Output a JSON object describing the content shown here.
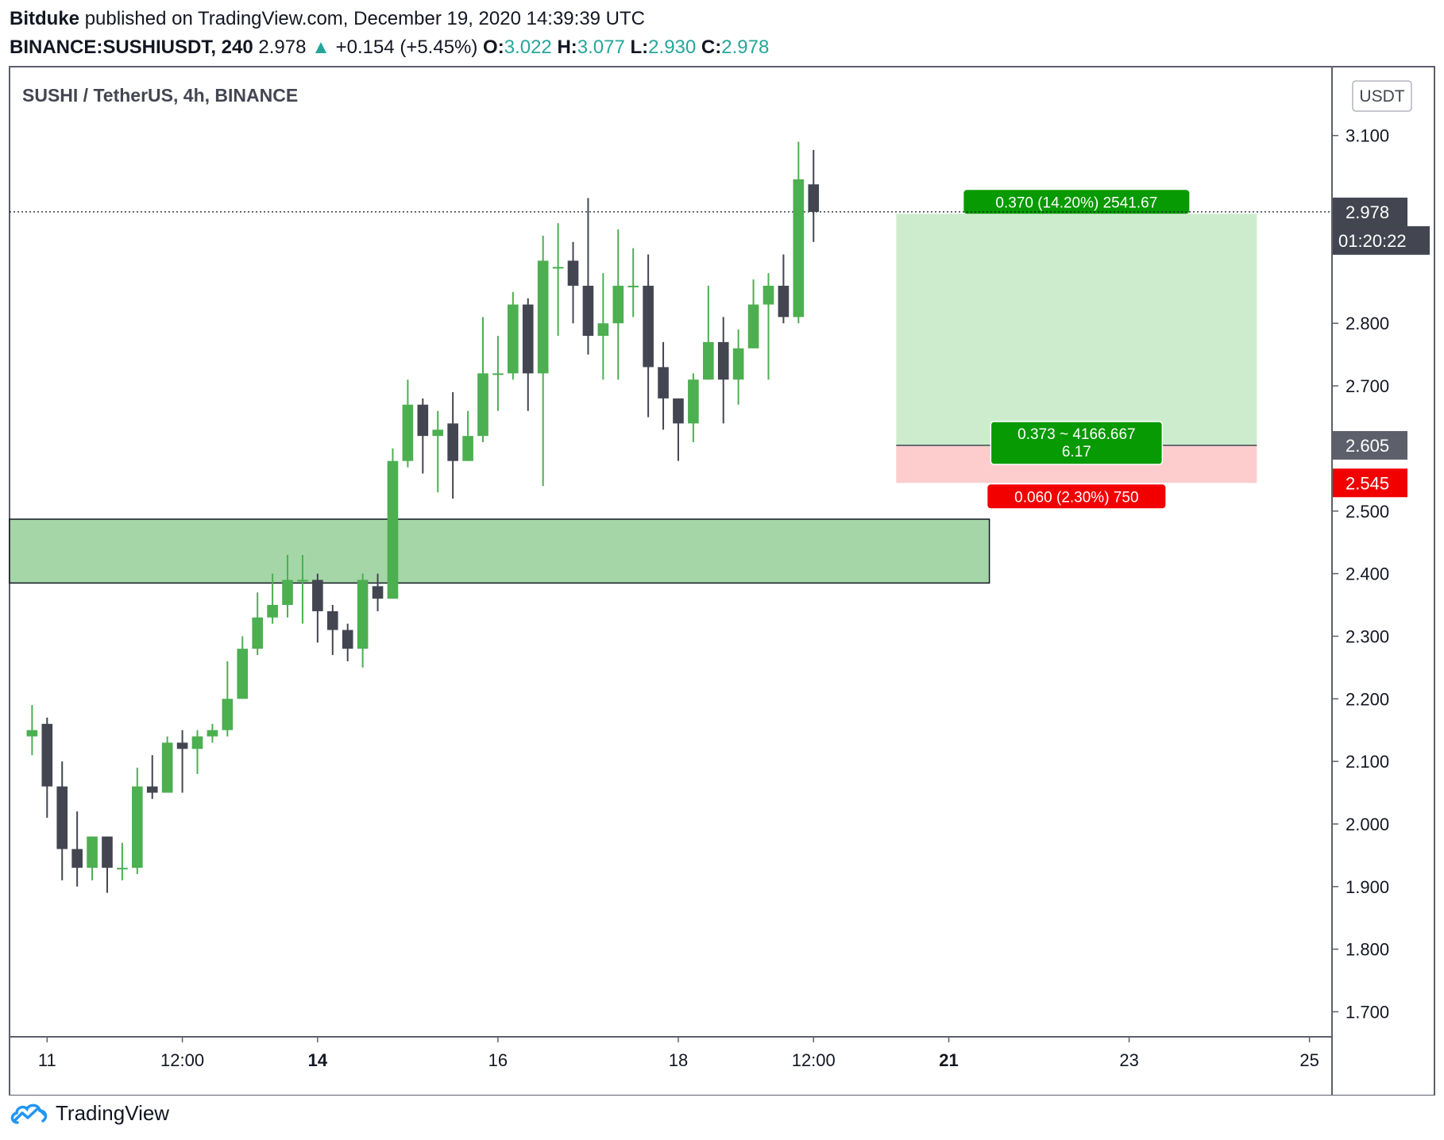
{
  "header": {
    "author": "Bitduke",
    "published_text": "published on TradingView.com, December 19, 2020 14:39:39 UTC",
    "symbol_interval": "BINANCE:SUSHIUSDT, 240",
    "last": "2.978",
    "change": "+0.154 (+5.45%)",
    "o_label": "O:",
    "o_value": "3.022",
    "h_label": "H:",
    "h_value": "3.077",
    "l_label": "L:",
    "l_value": "2.930",
    "c_label": "C:",
    "c_value": "2.978"
  },
  "footer": {
    "brand": "TradingView",
    "logo_icon": "tradingview-cloud-icon"
  },
  "chart_data": {
    "type": "candlestick",
    "title": "SUSHI / TetherUS, 4h, BINANCE",
    "currency": "USDT",
    "ylim": [
      1.66,
      3.21
    ],
    "yticks": [
      1.7,
      1.8,
      1.9,
      2.0,
      2.1,
      2.2,
      2.3,
      2.4,
      2.5,
      2.7,
      2.8,
      3.1
    ],
    "ytick_labels": [
      "1.700",
      "1.800",
      "1.900",
      "2.000",
      "2.100",
      "2.200",
      "2.300",
      "2.400",
      "2.500",
      "2.700",
      "2.800",
      "3.100"
    ],
    "xlim_bar_index": [
      -1.5,
      86.5
    ],
    "xticks": [
      {
        "i": 1,
        "label": "11",
        "bold": false
      },
      {
        "i": 10,
        "label": "12:00",
        "bold": false
      },
      {
        "i": 19,
        "label": "14",
        "bold": true
      },
      {
        "i": 31,
        "label": "16",
        "bold": false
      },
      {
        "i": 43,
        "label": "18",
        "bold": false
      },
      {
        "i": 52,
        "label": "12:00",
        "bold": false
      },
      {
        "i": 61,
        "label": "21",
        "bold": true
      },
      {
        "i": 73,
        "label": "23",
        "bold": false
      },
      {
        "i": 85,
        "label": "25",
        "bold": false
      }
    ],
    "up_color": "#4caf50",
    "down_color": "#434651",
    "candles": [
      {
        "o": 2.14,
        "h": 2.19,
        "l": 2.11,
        "c": 2.15
      },
      {
        "o": 2.16,
        "h": 2.17,
        "l": 2.01,
        "c": 2.06
      },
      {
        "o": 2.06,
        "h": 2.1,
        "l": 1.91,
        "c": 1.96
      },
      {
        "o": 1.96,
        "h": 2.02,
        "l": 1.9,
        "c": 1.93
      },
      {
        "o": 1.93,
        "h": 1.98,
        "l": 1.91,
        "c": 1.98
      },
      {
        "o": 1.98,
        "h": 1.98,
        "l": 1.89,
        "c": 1.93
      },
      {
        "o": 1.93,
        "h": 1.97,
        "l": 1.91,
        "c": 1.93
      },
      {
        "o": 1.93,
        "h": 2.09,
        "l": 1.92,
        "c": 2.06
      },
      {
        "o": 2.06,
        "h": 2.11,
        "l": 2.04,
        "c": 2.05
      },
      {
        "o": 2.05,
        "h": 2.14,
        "l": 2.05,
        "c": 2.13
      },
      {
        "o": 2.13,
        "h": 2.15,
        "l": 2.05,
        "c": 2.12
      },
      {
        "o": 2.12,
        "h": 2.15,
        "l": 2.08,
        "c": 2.14
      },
      {
        "o": 2.14,
        "h": 2.16,
        "l": 2.13,
        "c": 2.15
      },
      {
        "o": 2.15,
        "h": 2.26,
        "l": 2.14,
        "c": 2.2
      },
      {
        "o": 2.2,
        "h": 2.3,
        "l": 2.2,
        "c": 2.28
      },
      {
        "o": 2.28,
        "h": 2.37,
        "l": 2.27,
        "c": 2.33
      },
      {
        "o": 2.33,
        "h": 2.4,
        "l": 2.32,
        "c": 2.35
      },
      {
        "o": 2.35,
        "h": 2.43,
        "l": 2.33,
        "c": 2.39
      },
      {
        "o": 2.39,
        "h": 2.43,
        "l": 2.32,
        "c": 2.39
      },
      {
        "o": 2.39,
        "h": 2.4,
        "l": 2.29,
        "c": 2.34
      },
      {
        "o": 2.34,
        "h": 2.35,
        "l": 2.27,
        "c": 2.31
      },
      {
        "o": 2.31,
        "h": 2.32,
        "l": 2.26,
        "c": 2.28
      },
      {
        "o": 2.28,
        "h": 2.4,
        "l": 2.25,
        "c": 2.39
      },
      {
        "o": 2.38,
        "h": 2.4,
        "l": 2.34,
        "c": 2.36
      },
      {
        "o": 2.36,
        "h": 2.6,
        "l": 2.36,
        "c": 2.58
      },
      {
        "o": 2.58,
        "h": 2.71,
        "l": 2.57,
        "c": 2.67
      },
      {
        "o": 2.67,
        "h": 2.68,
        "l": 2.56,
        "c": 2.62
      },
      {
        "o": 2.62,
        "h": 2.66,
        "l": 2.53,
        "c": 2.63
      },
      {
        "o": 2.64,
        "h": 2.69,
        "l": 2.52,
        "c": 2.58
      },
      {
        "o": 2.58,
        "h": 2.66,
        "l": 2.58,
        "c": 2.62
      },
      {
        "o": 2.62,
        "h": 2.81,
        "l": 2.61,
        "c": 2.72
      },
      {
        "o": 2.72,
        "h": 2.78,
        "l": 2.66,
        "c": 2.72
      },
      {
        "o": 2.72,
        "h": 2.85,
        "l": 2.71,
        "c": 2.83
      },
      {
        "o": 2.83,
        "h": 2.84,
        "l": 2.66,
        "c": 2.72
      },
      {
        "o": 2.72,
        "h": 2.94,
        "l": 2.54,
        "c": 2.9
      },
      {
        "o": 2.89,
        "h": 2.96,
        "l": 2.78,
        "c": 2.89
      },
      {
        "o": 2.9,
        "h": 2.93,
        "l": 2.8,
        "c": 2.86
      },
      {
        "o": 2.86,
        "h": 3.0,
        "l": 2.75,
        "c": 2.78
      },
      {
        "o": 2.78,
        "h": 2.88,
        "l": 2.71,
        "c": 2.8
      },
      {
        "o": 2.8,
        "h": 2.95,
        "l": 2.71,
        "c": 2.86
      },
      {
        "o": 2.86,
        "h": 2.92,
        "l": 2.81,
        "c": 2.86
      },
      {
        "o": 2.86,
        "h": 2.91,
        "l": 2.65,
        "c": 2.73
      },
      {
        "o": 2.73,
        "h": 2.77,
        "l": 2.63,
        "c": 2.68
      },
      {
        "o": 2.68,
        "h": 2.68,
        "l": 2.58,
        "c": 2.64
      },
      {
        "o": 2.64,
        "h": 2.72,
        "l": 2.61,
        "c": 2.71
      },
      {
        "o": 2.71,
        "h": 2.86,
        "l": 2.71,
        "c": 2.77
      },
      {
        "o": 2.77,
        "h": 2.81,
        "l": 2.64,
        "c": 2.71
      },
      {
        "o": 2.71,
        "h": 2.79,
        "l": 2.67,
        "c": 2.76
      },
      {
        "o": 2.76,
        "h": 2.87,
        "l": 2.76,
        "c": 2.83
      },
      {
        "o": 2.83,
        "h": 2.88,
        "l": 2.71,
        "c": 2.86
      },
      {
        "o": 2.86,
        "h": 2.91,
        "l": 2.8,
        "c": 2.81
      },
      {
        "o": 2.81,
        "h": 3.09,
        "l": 2.8,
        "c": 3.03
      },
      {
        "o": 3.022,
        "h": 3.077,
        "l": 2.93,
        "c": 2.978
      }
    ],
    "last_price": {
      "value": 2.978,
      "label": "2.978",
      "countdown": "01:20:22"
    },
    "demand_zone": {
      "from_bar": -1.5,
      "to_bar": 63.7,
      "low": 2.385,
      "high": 2.487
    },
    "long_position": {
      "from_bar": 57.5,
      "to_bar": 81.5,
      "entry": 2.605,
      "target": 2.975,
      "stop": 2.545,
      "entry_label": "2.605",
      "target_label": "2.975",
      "stop_label": "2.545",
      "target_text": "0.370 (14.20%) 2541.67",
      "entry_text_1": "0.373 ~ 4166.667",
      "entry_text_2": "6.17",
      "stop_text": "0.060 (2.30%) 750"
    }
  }
}
